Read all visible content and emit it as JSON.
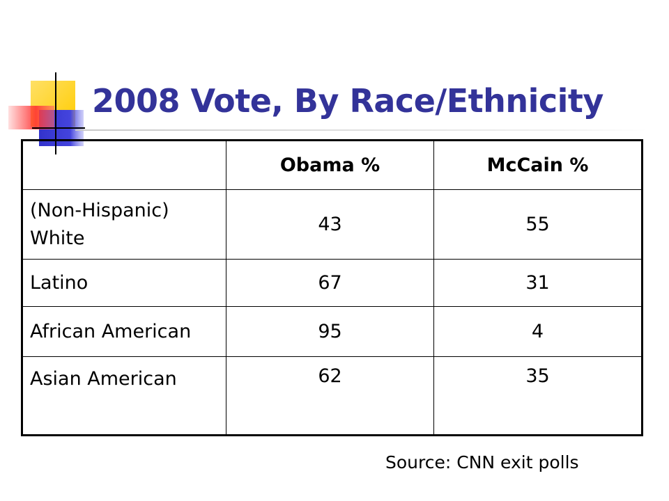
{
  "slide": {
    "title": "2008 Vote, By Race/Ethnicity",
    "source": "Source: CNN exit polls"
  },
  "table": {
    "headers": [
      "",
      "Obama %",
      "McCain %"
    ],
    "rows": [
      {
        "group": "(Non-Hispanic) White",
        "obama": "43",
        "mccain": "55"
      },
      {
        "group": "Latino",
        "obama": "67",
        "mccain": "31"
      },
      {
        "group": "African American",
        "obama": "95",
        "mccain": "4"
      },
      {
        "group": "Asian American",
        "obama": "62",
        "mccain": "35"
      }
    ]
  },
  "colors": {
    "title": "#333399",
    "logo_yellow": "#ffcc00",
    "logo_blue": "#3333cc",
    "logo_red": "#ff3333"
  },
  "icons": {
    "logo": "decorative-squares-logo"
  }
}
